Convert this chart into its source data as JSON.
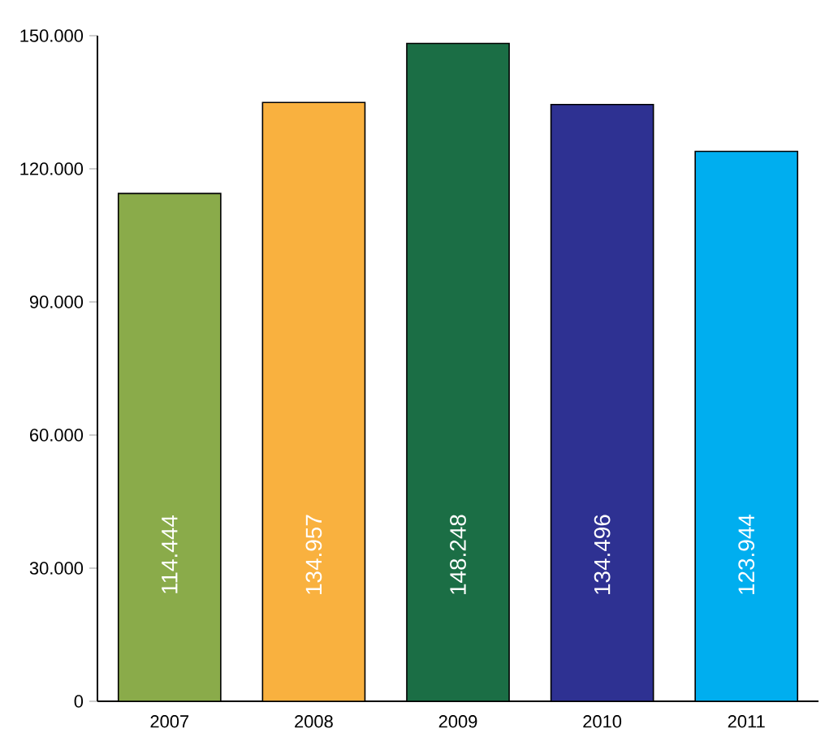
{
  "chart_data": {
    "type": "bar",
    "categories": [
      "2007",
      "2008",
      "2009",
      "2010",
      "2011"
    ],
    "values": [
      114444,
      134957,
      148248,
      134496,
      123944
    ],
    "value_labels": [
      "114.444",
      "134.957",
      "148.248",
      "134.496",
      "123.944"
    ],
    "colors": [
      "#8aab4a",
      "#f9b13f",
      "#1b6e45",
      "#2e3192",
      "#00aeef"
    ],
    "ylim": [
      0,
      150000
    ],
    "yticks": [
      0,
      {
        "value": 30000,
        "label": "30.000"
      },
      {
        "value": 60000,
        "label": "60.000"
      },
      {
        "value": 90000,
        "label": "90.000"
      },
      {
        "value": 120000,
        "label": "120.000"
      },
      {
        "value": 150000,
        "label": "150.000"
      }
    ],
    "grid": false
  }
}
